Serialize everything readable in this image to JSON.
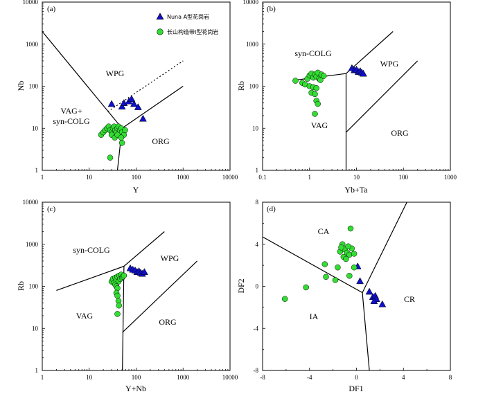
{
  "colors": {
    "nuna_a_granite": "#1010c8",
    "changshan_i_granite": "#33dd33",
    "marker_outline": "#000000",
    "axis": "#000000"
  },
  "legend": {
    "nuna_a_granite": "Nuna A型花岗岩",
    "changshan_i_granite": "长山构造带I型花岗岩"
  },
  "chart_data": [
    {
      "type": "scatter",
      "panel": "(a)",
      "xscale": "log",
      "yscale": "log",
      "xlabel": "Y",
      "ylabel": "Nb",
      "xlim": [
        1,
        10000
      ],
      "ylim": [
        1,
        10000
      ],
      "xticks": [
        "1",
        "10",
        "100",
        "1000",
        "10000"
      ],
      "yticks": [
        "1",
        "10",
        "100",
        "1000",
        "10000"
      ],
      "fields": [
        "WPG",
        "VAG+",
        "syn-COLG",
        "ORG"
      ],
      "boundaries": [
        {
          "style": "solid",
          "points": [
            [
              1,
              2000
            ],
            [
              50,
              10
            ]
          ]
        },
        {
          "style": "solid",
          "points": [
            [
              40,
              1
            ],
            [
              50,
              10
            ]
          ]
        },
        {
          "style": "solid",
          "points": [
            [
              50,
              10
            ],
            [
              1000,
              100
            ]
          ]
        },
        {
          "style": "dotted",
          "points": [
            [
              25,
              25
            ],
            [
              1000,
              400
            ]
          ]
        }
      ],
      "series": [
        {
          "name": "Nuna A型花岗岩",
          "marker": "triangle",
          "points": [
            [
              30,
              38
            ],
            [
              50,
              33
            ],
            [
              55,
              40
            ],
            [
              70,
              44
            ],
            [
              80,
              50
            ],
            [
              90,
              38
            ],
            [
              110,
              32
            ],
            [
              140,
              17
            ]
          ]
        },
        {
          "name": "长山构造带I型花岗岩",
          "marker": "circle",
          "points": [
            [
              18,
              7
            ],
            [
              20,
              8
            ],
            [
              22,
              9
            ],
            [
              24,
              10
            ],
            [
              26,
              11
            ],
            [
              28,
              9
            ],
            [
              30,
              8
            ],
            [
              32,
              10
            ],
            [
              34,
              11
            ],
            [
              36,
              9
            ],
            [
              38,
              8
            ],
            [
              40,
              10
            ],
            [
              42,
              11
            ],
            [
              45,
              9
            ],
            [
              48,
              10
            ],
            [
              50,
              8
            ],
            [
              55,
              7
            ],
            [
              58,
              9
            ],
            [
              30,
              7
            ],
            [
              35,
              6
            ],
            [
              40,
              7
            ],
            [
              48,
              6
            ],
            [
              50,
              4.5
            ],
            [
              28,
              2
            ]
          ]
        }
      ]
    },
    {
      "type": "scatter",
      "panel": "(b)",
      "xscale": "log",
      "yscale": "log",
      "xlabel": "Yb+Ta",
      "ylabel": "Rb",
      "xlim": [
        0.1,
        1000
      ],
      "ylim": [
        1,
        10000
      ],
      "xticks": [
        "0.1",
        "1",
        "10",
        "100",
        "1000"
      ],
      "yticks": [
        "1",
        "10",
        "100",
        "1000",
        "10000"
      ],
      "fields": [
        "syn-COLG",
        "WPG",
        "VAG",
        "ORG"
      ],
      "boundaries": [
        {
          "style": "solid",
          "points": [
            [
              0.5,
              140
            ],
            [
              6,
              200
            ]
          ]
        },
        {
          "style": "solid",
          "points": [
            [
              6,
              200
            ],
            [
              6,
              1
            ]
          ]
        },
        {
          "style": "solid",
          "points": [
            [
              6,
              200
            ],
            [
              60,
              2000
            ]
          ]
        },
        {
          "style": "solid",
          "points": [
            [
              6,
              8
            ],
            [
              200,
              400
            ]
          ]
        }
      ],
      "series": [
        {
          "name": "Nuna A型花岗岩",
          "marker": "triangle",
          "points": [
            [
              8,
              270
            ],
            [
              9,
              240
            ],
            [
              10,
              250
            ],
            [
              11,
              220
            ],
            [
              12,
              230
            ],
            [
              13,
              210
            ],
            [
              14,
              200
            ]
          ]
        },
        {
          "name": "长山构造带I型花岗岩",
          "marker": "circle",
          "points": [
            [
              0.5,
              135
            ],
            [
              0.7,
              120
            ],
            [
              0.8,
              110
            ],
            [
              0.9,
              150
            ],
            [
              1.0,
              180
            ],
            [
              1.1,
              200
            ],
            [
              1.2,
              160
            ],
            [
              1.3,
              190
            ],
            [
              1.4,
              170
            ],
            [
              1.5,
              210
            ],
            [
              1.6,
              150
            ],
            [
              1.7,
              140
            ],
            [
              1.8,
              190
            ],
            [
              2.0,
              175
            ],
            [
              1.0,
              100
            ],
            [
              1.2,
              95
            ],
            [
              1.4,
              90
            ],
            [
              1.1,
              70
            ],
            [
              1.3,
              65
            ],
            [
              1.4,
              45
            ],
            [
              1.5,
              38
            ],
            [
              1.3,
              22
            ]
          ]
        }
      ]
    },
    {
      "type": "scatter",
      "panel": "(c)",
      "xscale": "log",
      "yscale": "log",
      "xlabel": "Y+Nb",
      "ylabel": "Rb",
      "xlim": [
        1,
        10000
      ],
      "ylim": [
        1,
        10000
      ],
      "xticks": [
        "1",
        "10",
        "100",
        "1000",
        "10000"
      ],
      "yticks": [
        "1",
        "10",
        "100",
        "1000",
        "10000"
      ],
      "fields": [
        "syn-COLG",
        "WPG",
        "VAG",
        "ORG"
      ],
      "boundaries": [
        {
          "style": "solid",
          "points": [
            [
              2,
              80
            ],
            [
              55,
              300
            ]
          ]
        },
        {
          "style": "solid",
          "points": [
            [
              55,
              300
            ],
            [
              51,
              1
            ]
          ]
        },
        {
          "style": "solid",
          "points": [
            [
              55,
              300
            ],
            [
              400,
              2000
            ]
          ]
        },
        {
          "style": "solid",
          "points": [
            [
              51,
              8
            ],
            [
              2000,
              400
            ]
          ]
        }
      ],
      "series": [
        {
          "name": "Nuna A型花岗岩",
          "marker": "triangle",
          "points": [
            [
              75,
              270
            ],
            [
              85,
              250
            ],
            [
              95,
              240
            ],
            [
              105,
              220
            ],
            [
              115,
              230
            ],
            [
              125,
              210
            ],
            [
              135,
              200
            ],
            [
              150,
              220
            ]
          ]
        },
        {
          "name": "长山构造带I型花岗岩",
          "marker": "circle",
          "points": [
            [
              30,
              130
            ],
            [
              32,
              150
            ],
            [
              34,
              120
            ],
            [
              36,
              160
            ],
            [
              38,
              140
            ],
            [
              40,
              170
            ],
            [
              42,
              130
            ],
            [
              44,
              180
            ],
            [
              46,
              150
            ],
            [
              48,
              190
            ],
            [
              50,
              160
            ],
            [
              52,
              170
            ],
            [
              55,
              180
            ],
            [
              36,
              110
            ],
            [
              38,
              100
            ],
            [
              40,
              90
            ],
            [
              38,
              70
            ],
            [
              40,
              60
            ],
            [
              42,
              45
            ],
            [
              43,
              35
            ],
            [
              40,
              22
            ]
          ]
        }
      ]
    },
    {
      "type": "scatter",
      "panel": "(d)",
      "xscale": "linear",
      "yscale": "linear",
      "xlabel": "DF1",
      "ylabel": "DF2",
      "xlim": [
        -8,
        8
      ],
      "ylim": [
        -8,
        8
      ],
      "xticks": [
        "-8",
        "-4",
        "0",
        "4",
        "8"
      ],
      "yticks": [
        "-8",
        "-4",
        "0",
        "4",
        "8"
      ],
      "fields": [
        "CA",
        "IA",
        "CR"
      ],
      "boundaries": [
        {
          "style": "solid",
          "points": [
            [
              -8,
              4.7
            ],
            [
              0.5,
              -0.6
            ]
          ]
        },
        {
          "style": "solid",
          "points": [
            [
              0.5,
              -0.6
            ],
            [
              4.3,
              8
            ]
          ]
        },
        {
          "style": "solid",
          "points": [
            [
              0.5,
              -0.6
            ],
            [
              1.1,
              -8
            ]
          ]
        }
      ],
      "series": [
        {
          "name": "Nuna A型花岗岩",
          "marker": "triangle",
          "points": [
            [
              0.1,
              1.9
            ],
            [
              0.3,
              0.5
            ],
            [
              1.1,
              -0.5
            ],
            [
              1.4,
              -1.0
            ],
            [
              1.6,
              -0.9
            ],
            [
              1.7,
              -1.2
            ],
            [
              1.5,
              -1.4
            ],
            [
              2.2,
              -1.7
            ]
          ]
        },
        {
          "name": "长山构造带I型花岗岩",
          "marker": "circle",
          "points": [
            [
              -0.5,
              5.5
            ],
            [
              -1.2,
              4.0
            ],
            [
              -1.0,
              3.5
            ],
            [
              -0.8,
              3.2
            ],
            [
              -0.6,
              3.0
            ],
            [
              -1.4,
              3.3
            ],
            [
              -1.1,
              2.8
            ],
            [
              -0.4,
              3.6
            ],
            [
              -0.2,
              3.1
            ],
            [
              -0.9,
              2.6
            ],
            [
              -0.7,
              3.8
            ],
            [
              -1.3,
              3.7
            ],
            [
              -2.7,
              2.1
            ],
            [
              -1.6,
              1.8
            ],
            [
              -0.2,
              1.8
            ],
            [
              -0.6,
              1.0
            ],
            [
              -2.6,
              0.9
            ],
            [
              -1.8,
              0.6
            ],
            [
              -4.3,
              -0.1
            ],
            [
              -6.1,
              -1.2
            ]
          ]
        }
      ]
    }
  ]
}
